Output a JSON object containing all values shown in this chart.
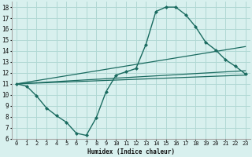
{
  "xlabel": "Humidex (Indice chaleur)",
  "bg_color": "#d8f0ee",
  "grid_color": "#b0d8d4",
  "line_color": "#1a6b60",
  "xlim": [
    -0.5,
    23.5
  ],
  "ylim": [
    6,
    18.5
  ],
  "xticks": [
    0,
    1,
    2,
    3,
    4,
    5,
    6,
    7,
    8,
    9,
    10,
    11,
    12,
    13,
    14,
    15,
    16,
    17,
    18,
    19,
    20,
    21,
    22,
    23
  ],
  "yticks": [
    6,
    7,
    8,
    9,
    10,
    11,
    12,
    13,
    14,
    15,
    16,
    17,
    18
  ],
  "line1_x": [
    0,
    1,
    2,
    3,
    4,
    5,
    6,
    7,
    8,
    9,
    10,
    11,
    12,
    13,
    14,
    15,
    16,
    17,
    18,
    19,
    20,
    21,
    22,
    23
  ],
  "line1_y": [
    11.0,
    10.8,
    9.9,
    8.8,
    8.1,
    7.5,
    6.5,
    6.3,
    7.9,
    10.3,
    11.8,
    12.1,
    12.4,
    14.6,
    17.6,
    18.0,
    18.0,
    17.3,
    16.2,
    14.8,
    14.1,
    13.2,
    12.6,
    11.9
  ],
  "line2_x": [
    0,
    23
  ],
  "line2_y": [
    11.0,
    11.8
  ],
  "line3_x": [
    0,
    23
  ],
  "line3_y": [
    11.0,
    14.4
  ],
  "line4_x": [
    0,
    23
  ],
  "line4_y": [
    11.0,
    12.2
  ]
}
